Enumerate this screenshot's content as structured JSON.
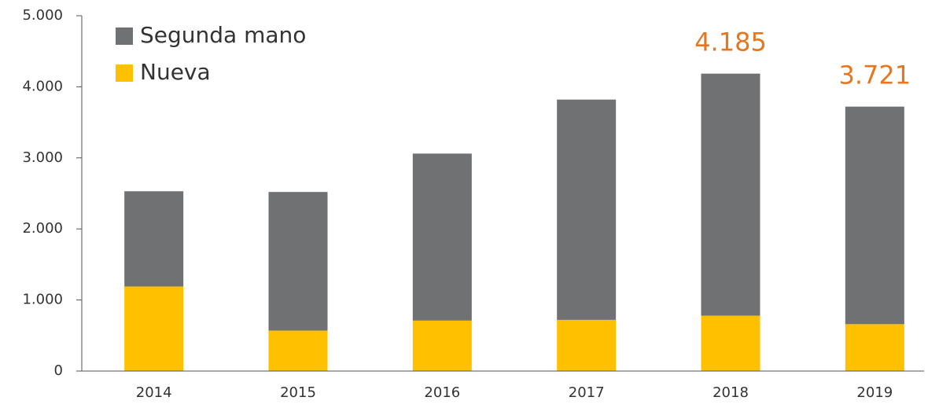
{
  "chart_data": {
    "type": "stacked_bar",
    "categories": [
      "2014",
      "2015",
      "2016",
      "2017",
      "2018",
      "2019"
    ],
    "series": [
      {
        "name": "Nueva",
        "color": "#ffc000",
        "values": [
          1190,
          570,
          710,
          720,
          780,
          660
        ]
      },
      {
        "name": "Segunda mano",
        "color": "#707173",
        "values": [
          1340,
          1950,
          2350,
          3100,
          3405,
          3061
        ]
      }
    ],
    "ylim": [
      0,
      5000
    ],
    "yticks": [
      0,
      {
        "value": 1000,
        "label": "1.000"
      },
      {
        "value": 2000,
        "label": "2.000"
      },
      {
        "value": 3000,
        "label": "3.000"
      },
      {
        "value": 4000,
        "label": "4.000"
      },
      {
        "value": 5000,
        "label": "5.000"
      }
    ],
    "legend": "top-left",
    "annotations": [
      {
        "x": "2018",
        "text": "4.185"
      },
      {
        "x": "2019",
        "text": "3.721"
      }
    ]
  }
}
